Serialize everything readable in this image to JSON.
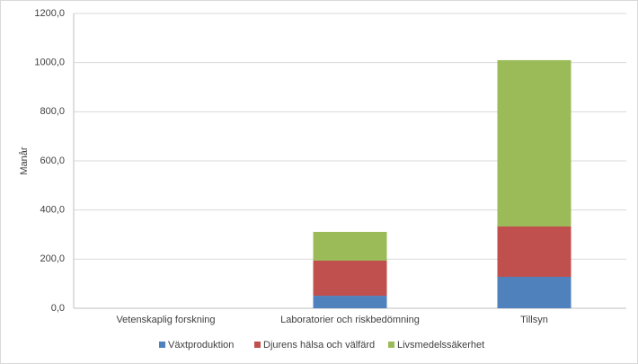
{
  "chart_data": {
    "type": "stacked_bar",
    "y_label": "Manår",
    "categories": [
      "Vetenskaplig forskning",
      "Laboratorier och riskbedömning",
      "Tillsyn"
    ],
    "series": [
      {
        "name": "Växtproduktion",
        "color": "#4f81bd",
        "values": [
          0,
          51,
          128
        ]
      },
      {
        "name": "Djurens hälsa och välfärd",
        "color": "#c0504d",
        "values": [
          0,
          143,
          205
        ]
      },
      {
        "name": "Livsmedelssäkerhet",
        "color": "#9bbb59",
        "values": [
          0,
          117,
          677
        ]
      }
    ],
    "ylim": [
      0,
      1200
    ],
    "yticks": [
      {
        "value": 0,
        "label": "0,0"
      },
      {
        "value": 200,
        "label": "200,0"
      },
      {
        "value": 400,
        "label": "400,0"
      },
      {
        "value": 600,
        "label": "600,0"
      },
      {
        "value": 800,
        "label": "800,0"
      },
      {
        "value": 1000,
        "label": "1000,0"
      },
      {
        "value": 1200,
        "label": "1200,0"
      }
    ],
    "grid": true,
    "legend": "bottom"
  }
}
